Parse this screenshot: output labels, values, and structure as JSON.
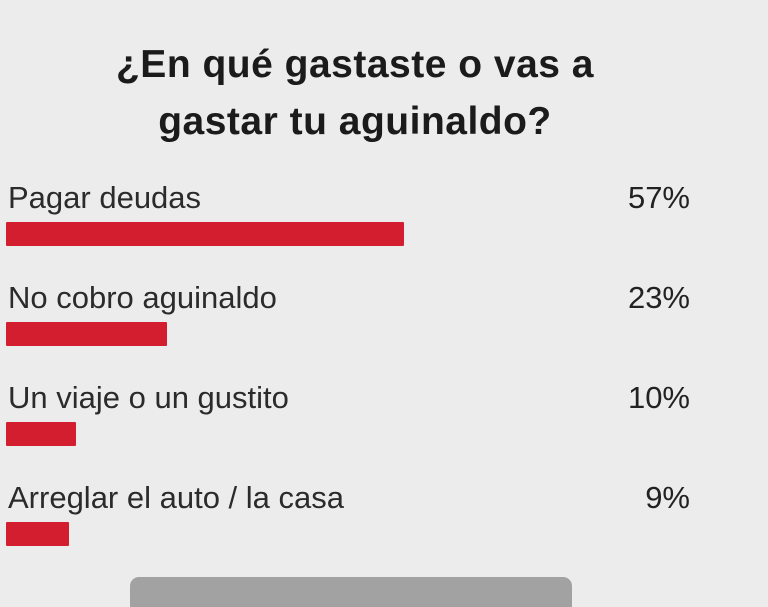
{
  "title": {
    "line1": "¿En qué gastaste o vas a",
    "line2": "gastar tu aguinaldo?"
  },
  "rows": [
    {
      "label": "Pagar deudas",
      "percent_label": "57%",
      "value": 57
    },
    {
      "label": "No cobro aguinaldo",
      "percent_label": "23%",
      "value": 23
    },
    {
      "label": "Un viaje o un gustito",
      "percent_label": "10%",
      "value": 10
    },
    {
      "label": "Arreglar el auto / la casa",
      "percent_label": "9%",
      "value": 9
    }
  ],
  "chart_data": {
    "type": "bar",
    "orientation": "horizontal",
    "title": "¿En qué gastaste o vas a gastar tu aguinaldo?",
    "categories": [
      "Pagar deudas",
      "No cobro aguinaldo",
      "Un viaje o un gustito",
      "Arreglar el auto / la casa"
    ],
    "values": [
      57,
      23,
      10,
      9
    ],
    "value_labels": [
      "57%",
      "23%",
      "10%",
      "9%"
    ],
    "unit": "%",
    "xlim": [
      0,
      100
    ],
    "grid": false,
    "legend": "none",
    "bar_color": "#d31e30",
    "background_color": "#ececec",
    "text_color": "#2b2b2b"
  },
  "footer": {
    "scrollbar_color": "#a2a2a2"
  }
}
